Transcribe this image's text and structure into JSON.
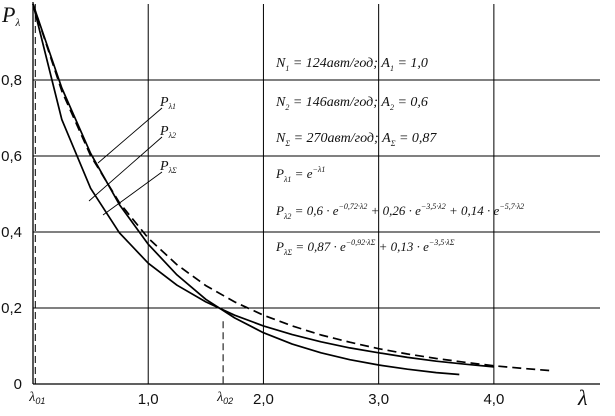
{
  "chart_data": {
    "type": "line",
    "ylabel": "P",
    "ylabel_subscript": "λ",
    "xlabel": "λ",
    "xlim": [
      0,
      4.6
    ],
    "ylim": [
      0,
      1.0
    ],
    "x_ticks": [
      {
        "value": 1,
        "label": "1,0"
      },
      {
        "value": 2,
        "label": "2,0"
      },
      {
        "value": 3,
        "label": "3,0"
      },
      {
        "value": 4,
        "label": "4,0"
      }
    ],
    "y_ticks": [
      {
        "value": 0,
        "label": "0"
      },
      {
        "value": 0.2,
        "label": "0,2"
      },
      {
        "value": 0.4,
        "label": "0,4"
      },
      {
        "value": 0.6,
        "label": "0,6"
      },
      {
        "value": 0.8,
        "label": "0,8"
      }
    ],
    "grid": true,
    "special_x_ticks": [
      {
        "value": 0.02,
        "main": "λ",
        "sub": "01"
      },
      {
        "value": 1.65,
        "main": "λ",
        "sub": "02"
      }
    ],
    "series": [
      {
        "name": "P",
        "name_subscript": "λ1",
        "style": "solid",
        "x": [
          0,
          0.25,
          0.5,
          0.75,
          1.0,
          1.25,
          1.5,
          1.75,
          2.0,
          2.25,
          2.5,
          2.75,
          3.0,
          3.25,
          3.5,
          3.7
        ],
        "y": [
          1.0,
          0.779,
          0.607,
          0.472,
          0.368,
          0.287,
          0.223,
          0.174,
          0.135,
          0.105,
          0.082,
          0.064,
          0.05,
          0.039,
          0.03,
          0.025
        ]
      },
      {
        "name": "P",
        "name_subscript": "λ2",
        "style": "solid",
        "x": [
          0,
          0.25,
          0.5,
          0.75,
          1.0,
          1.25,
          1.5,
          1.75,
          2.0,
          2.25,
          2.5,
          2.75,
          3.0,
          3.25,
          3.5,
          3.75,
          4.0
        ],
        "y": [
          1.0,
          0.696,
          0.515,
          0.398,
          0.318,
          0.26,
          0.216,
          0.181,
          0.153,
          0.13,
          0.111,
          0.095,
          0.082,
          0.07,
          0.06,
          0.052,
          0.045
        ]
      },
      {
        "name": "P",
        "name_subscript": "λΣ",
        "style": "dashed",
        "x": [
          0,
          0.25,
          0.5,
          0.75,
          1.0,
          1.25,
          1.5,
          1.75,
          2.0,
          2.25,
          2.5,
          2.75,
          3.0,
          3.25,
          3.5,
          3.75,
          4.0,
          4.25,
          4.5
        ],
        "y": [
          1.0,
          0.771,
          0.601,
          0.477,
          0.384,
          0.314,
          0.259,
          0.216,
          0.181,
          0.153,
          0.129,
          0.11,
          0.093,
          0.079,
          0.067,
          0.057,
          0.048,
          0.041,
          0.035
        ]
      }
    ],
    "legend": {
      "placement": "center-left"
    },
    "annotations": [
      {
        "parts": [
          {
            "t": "N"
          },
          {
            "t": "1",
            "sub": true
          },
          {
            "t": " = 124авт/год; A"
          },
          {
            "t": "1",
            "sub": true
          },
          {
            "t": " = 1,0"
          }
        ]
      },
      {
        "parts": [
          {
            "t": "N"
          },
          {
            "t": "2",
            "sub": true
          },
          {
            "t": " = 146авт/год; A"
          },
          {
            "t": "2",
            "sub": true
          },
          {
            "t": " = 0,6"
          }
        ]
      },
      {
        "parts": [
          {
            "t": "N"
          },
          {
            "t": "Σ",
            "sub": true
          },
          {
            "t": " = 270авт/год; A"
          },
          {
            "t": "Σ",
            "sub": true
          },
          {
            "t": " = 0,87"
          }
        ]
      }
    ],
    "formulas": [
      {
        "parts": [
          {
            "t": "P"
          },
          {
            "t": "λ1",
            "sub": true
          },
          {
            "t": " = e"
          },
          {
            "t": "−λ1",
            "sup": true
          }
        ]
      },
      {
        "parts": [
          {
            "t": "P"
          },
          {
            "t": "λ2",
            "sub": true
          },
          {
            "t": " = 0,6 · e"
          },
          {
            "t": "−0,72·λ2",
            "sup": true
          },
          {
            "t": " + 0,26 · e"
          },
          {
            "t": "−3,5·λ2",
            "sup": true
          },
          {
            "t": " + 0,14 · e"
          },
          {
            "t": "−5,7·λ2",
            "sup": true
          }
        ]
      },
      {
        "parts": [
          {
            "t": "P"
          },
          {
            "t": "λΣ",
            "sub": true
          },
          {
            "t": " = 0,87 · e"
          },
          {
            "t": "−0,92·λΣ",
            "sup": true
          },
          {
            "t": " + 0,13 · e"
          },
          {
            "t": "−3,5·λΣ",
            "sup": true
          }
        ]
      }
    ]
  }
}
